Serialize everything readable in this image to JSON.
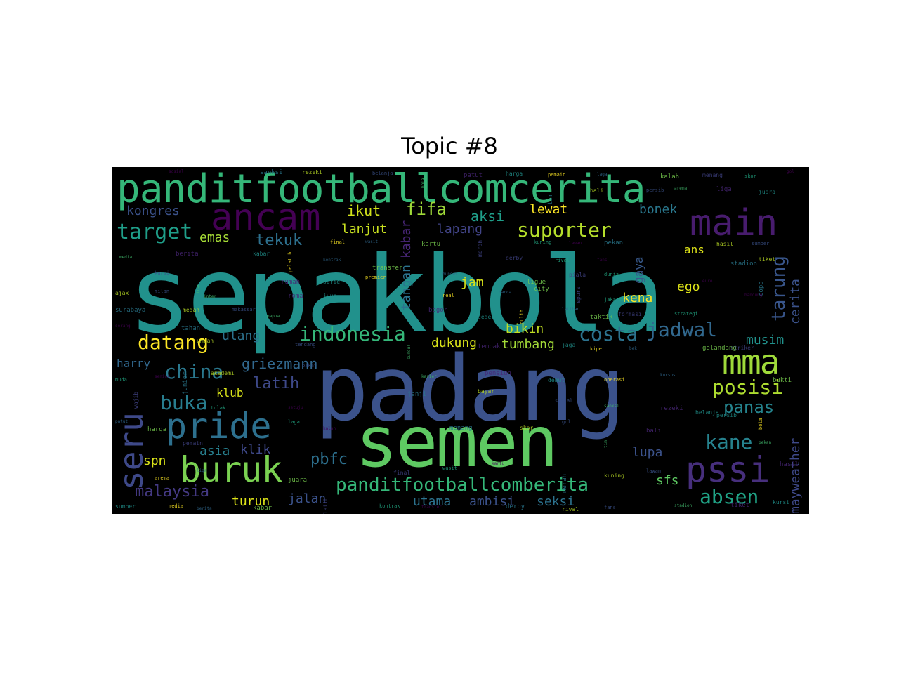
{
  "title": "Topic #8",
  "colors": {
    "background": "#000000",
    "palette_note": "viridis"
  },
  "words": {
    "w0": "sepakbola",
    "w1": "padang",
    "w2": "semen",
    "w3": "panditfootballcomcerita",
    "w4": "ancam",
    "w5": "main",
    "w6": "mma",
    "w7": "pride",
    "w8": "buruk",
    "w9": "pssi",
    "w10": "seru",
    "w11": "target",
    "w12": "suporter",
    "w13": "indonesia",
    "w14": "costa",
    "w15": "jadwal",
    "w16": "datang",
    "w17": "china",
    "w18": "buka",
    "w19": "posisi",
    "w20": "panas",
    "w21": "kane",
    "w22": "absen",
    "w23": "panditfootballcomberita",
    "w24": "pbfc",
    "w25": "tarung",
    "w26": "griezmann",
    "w27": "latih",
    "w28": "malaysia",
    "w29": "tekuk",
    "w30": "fifa",
    "w31": "kongres",
    "w32": "emas",
    "w33": "ikut",
    "w34": "aksi",
    "w35": "lewat",
    "w36": "bonek",
    "w37": "lanjut",
    "w38": "lapang",
    "w39": "kabar",
    "w40": "tangan",
    "w41": "jam",
    "w42": "gaya",
    "w43": "ans",
    "w44": "ego",
    "w45": "kena",
    "w46": "cerita",
    "w47": "ulang",
    "w48": "bikin",
    "w49": "dukung",
    "w50": "tumbang",
    "w51": "musim",
    "w52": "harry",
    "w53": "klub",
    "w54": "asia",
    "w55": "klik",
    "w56": "spn",
    "w57": "lupa",
    "w58": "jalan",
    "w59": "utama",
    "w60": "ambisi",
    "w61": "seksi",
    "w62": "sfs",
    "w63": "turun",
    "w64": "mayweather"
  },
  "tiny_words": [
    "sosial",
    "sanksi",
    "rezeki",
    "belanja",
    "bola",
    "patut",
    "harga",
    "pemain",
    "laga",
    "kalah",
    "menang",
    "skor",
    "gol",
    "tim",
    "bali",
    "persib",
    "arema",
    "liga",
    "juara",
    "final",
    "wasit",
    "kartu",
    "merah",
    "kuning",
    "lawan",
    "pekan",
    "hasil",
    "sumber",
    "media",
    "berita",
    "kabar",
    "pelatih",
    "kontrak",
    "transfer",
    "derby",
    "rival",
    "fans",
    "stadion",
    "tiket",
    "kursi",
    "tuan",
    "rumah",
    "serie",
    "premier",
    "bundes",
    "ligue",
    "piala",
    "dunia",
    "euro",
    "copa",
    "ajax",
    "milan",
    "inter",
    "roma",
    "juve",
    "real",
    "barca",
    "city",
    "spurs",
    "jakarta",
    "bandung",
    "surabaya",
    "medan",
    "makassar",
    "papua",
    "bogor",
    "cedera",
    "pulih",
    "latihan",
    "taktik",
    "formasi",
    "strategi",
    "serang",
    "tahan",
    "umpan",
    "tendang",
    "sundul",
    "tembak",
    "jaga",
    "kiper",
    "bek",
    "gelandang",
    "striker",
    "muda",
    "senior",
    "junior",
    "akademi",
    "bakat",
    "karier",
    "pensiun",
    "debut",
    "operasi",
    "kursus",
    "bukti",
    "wajib",
    "tolak",
    "setuju",
    "janji",
    "bayar"
  ]
}
